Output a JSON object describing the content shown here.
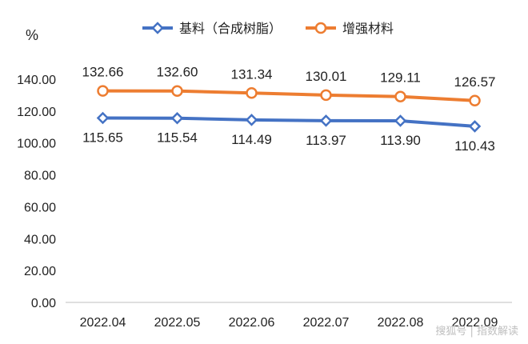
{
  "chart_data": {
    "type": "line",
    "title": "",
    "xlabel": "",
    "ylabel": "%",
    "ylim": [
      0,
      140
    ],
    "yticks": [
      "0.00",
      "20.00",
      "40.00",
      "60.00",
      "80.00",
      "100.00",
      "120.00",
      "140.00"
    ],
    "categories": [
      "2022.04",
      "2022.05",
      "2022.06",
      "2022.07",
      "2022.08",
      "2022.09"
    ],
    "grid": false,
    "legend_position": "top-center",
    "series": [
      {
        "name": "基料（合成树脂）",
        "color": "#4472C4",
        "marker": "diamond",
        "label_position": "below",
        "values": [
          115.65,
          115.54,
          114.49,
          113.97,
          113.9,
          110.43
        ],
        "labels": [
          "115.65",
          "115.54",
          "114.49",
          "113.97",
          "113.90",
          "110.43"
        ]
      },
      {
        "name": "增强材料",
        "color": "#ED7D31",
        "marker": "circle",
        "label_position": "above",
        "values": [
          132.66,
          132.6,
          131.34,
          130.01,
          129.11,
          126.57
        ],
        "labels": [
          "132.66",
          "132.60",
          "131.34",
          "130.01",
          "129.11",
          "126.57"
        ]
      }
    ]
  },
  "watermark": "搜狐号 | 指数解读"
}
